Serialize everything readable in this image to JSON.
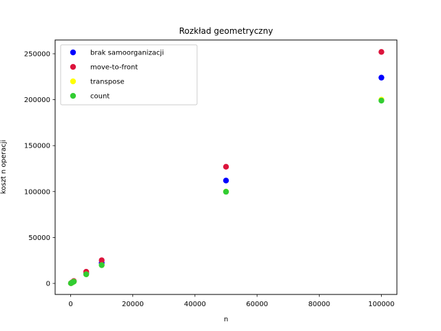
{
  "chart_data": {
    "type": "scatter",
    "title": "Rozkład geometryczny",
    "xlabel": "n",
    "ylabel": "koszt n operacji",
    "xlim": [
      -5000,
      105000
    ],
    "ylim": [
      -12000,
      265000
    ],
    "x_ticks": [
      0,
      20000,
      40000,
      60000,
      80000,
      100000
    ],
    "y_ticks": [
      0,
      50000,
      100000,
      150000,
      200000,
      250000
    ],
    "legend_position": "top-left",
    "grid": false,
    "series": [
      {
        "name": "brak samoorganizacji",
        "color": "#0000ff",
        "x": [
          100,
          500,
          1000,
          5000,
          10000,
          50000,
          100000
        ],
        "y": [
          240,
          1150,
          2300,
          11200,
          22400,
          112000,
          224000
        ]
      },
      {
        "name": "move-to-front",
        "color": "#dc143c",
        "x": [
          100,
          500,
          1000,
          5000,
          10000,
          50000,
          100000
        ],
        "y": [
          270,
          1300,
          2600,
          12700,
          25200,
          127000,
          252000
        ]
      },
      {
        "name": "transpose",
        "color": "#ffff00",
        "x": [
          100,
          500,
          1000,
          5000,
          10000,
          50000,
          100000
        ],
        "y": [
          210,
          1000,
          2000,
          10000,
          20000,
          100000,
          200000
        ]
      },
      {
        "name": "count",
        "color": "#32cd32",
        "x": [
          100,
          500,
          1000,
          5000,
          10000,
          50000,
          100000
        ],
        "y": [
          200,
          990,
          1990,
          9950,
          19900,
          99800,
          199000
        ]
      }
    ]
  }
}
